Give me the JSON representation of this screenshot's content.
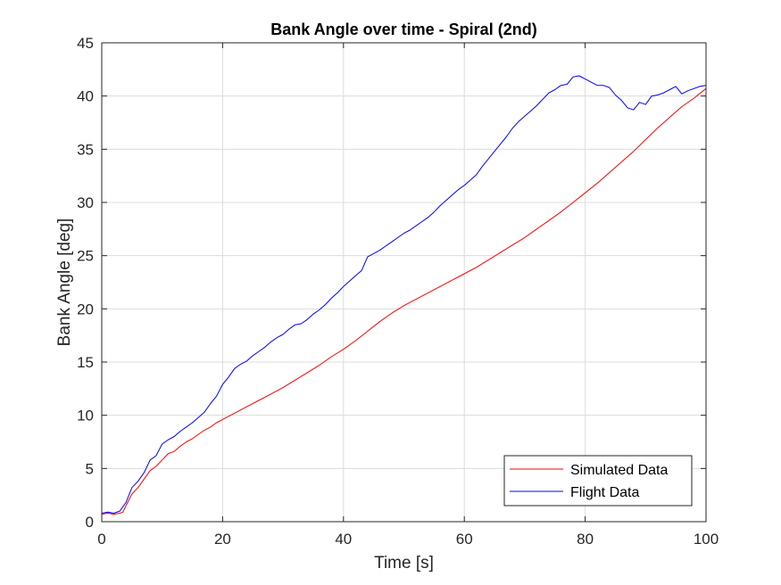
{
  "chart_data": {
    "type": "line",
    "title": "Bank Angle over time - Spiral (2nd)",
    "xlabel": "Time [s]",
    "ylabel": "Bank Angle [deg]",
    "xlim": [
      0,
      100
    ],
    "ylim": [
      0,
      45
    ],
    "xticks": [
      0,
      20,
      40,
      60,
      80,
      100
    ],
    "yticks": [
      0,
      5,
      10,
      15,
      20,
      25,
      30,
      35,
      40,
      45
    ],
    "grid": true,
    "legend_position": "bottom-right",
    "series": [
      {
        "name": "Simulated Data",
        "color": "#ff0000",
        "x": [
          0,
          1,
          2,
          3,
          3.5,
          4,
          5,
          6,
          7,
          8,
          9,
          10,
          11,
          12,
          13,
          14,
          15,
          16,
          17,
          18,
          19,
          20,
          22,
          24,
          26,
          28,
          30,
          32,
          34,
          36,
          38,
          40,
          42,
          44,
          46,
          48,
          50,
          52,
          54,
          56,
          58,
          60,
          62,
          64,
          66,
          68,
          70,
          72,
          74,
          76,
          78,
          80,
          82,
          84,
          86,
          88,
          90,
          92,
          94,
          96,
          98,
          100
        ],
        "y": [
          0.7,
          0.8,
          0.7,
          0.8,
          0.9,
          1.5,
          2.6,
          3.2,
          4.0,
          4.8,
          5.2,
          5.8,
          6.4,
          6.6,
          7.1,
          7.5,
          7.8,
          8.2,
          8.6,
          8.9,
          9.3,
          9.6,
          10.2,
          10.8,
          11.4,
          12.0,
          12.6,
          13.3,
          14.0,
          14.7,
          15.5,
          16.2,
          17.0,
          17.9,
          18.8,
          19.6,
          20.3,
          20.9,
          21.5,
          22.1,
          22.7,
          23.3,
          23.9,
          24.6,
          25.3,
          26.0,
          26.7,
          27.5,
          28.3,
          29.1,
          30.0,
          30.9,
          31.8,
          32.8,
          33.8,
          34.8,
          35.9,
          37.0,
          38.0,
          39.0,
          39.8,
          40.7
        ]
      },
      {
        "name": "Flight Data",
        "color": "#0000ff",
        "x": [
          0,
          1,
          2,
          3,
          4,
          5,
          6,
          7,
          8,
          9,
          10,
          11,
          12,
          13,
          14,
          15,
          16,
          17,
          18,
          19,
          20,
          21,
          22,
          23,
          24,
          25,
          26,
          27,
          28,
          29,
          30,
          31,
          32,
          33,
          34,
          35,
          36,
          37,
          38,
          39,
          40,
          41,
          42,
          43,
          44,
          45,
          46,
          47,
          48,
          49,
          50,
          51,
          52,
          53,
          54,
          55,
          56,
          57,
          58,
          59,
          60,
          61,
          62,
          63,
          64,
          65,
          66,
          67,
          68,
          69,
          70,
          71,
          72,
          73,
          74,
          75,
          76,
          77,
          78,
          79,
          80,
          81,
          82,
          83,
          84,
          85,
          86,
          87,
          88,
          89,
          90,
          91,
          92,
          93,
          94,
          95,
          96,
          97,
          98,
          99,
          100
        ],
        "y": [
          0.8,
          0.9,
          0.8,
          1.0,
          1.8,
          3.2,
          3.8,
          4.6,
          5.8,
          6.2,
          7.3,
          7.7,
          8.0,
          8.5,
          8.9,
          9.3,
          9.8,
          10.3,
          11.1,
          11.8,
          12.9,
          13.6,
          14.4,
          14.8,
          15.1,
          15.6,
          16.0,
          16.4,
          16.9,
          17.3,
          17.6,
          18.1,
          18.5,
          18.6,
          19.0,
          19.5,
          19.9,
          20.4,
          21.0,
          21.5,
          22.1,
          22.6,
          23.1,
          23.6,
          24.9,
          25.2,
          25.5,
          25.9,
          26.3,
          26.7,
          27.1,
          27.4,
          27.8,
          28.2,
          28.6,
          29.1,
          29.7,
          30.2,
          30.7,
          31.2,
          31.6,
          32.1,
          32.6,
          33.4,
          34.1,
          34.8,
          35.5,
          36.2,
          37.0,
          37.6,
          38.1,
          38.6,
          39.1,
          39.7,
          40.3,
          40.6,
          41.0,
          41.1,
          41.8,
          41.9,
          41.6,
          41.3,
          41.0,
          41.0,
          40.8,
          40.1,
          39.6,
          38.9,
          38.7,
          39.4,
          39.2,
          40.0,
          40.1,
          40.3,
          40.6,
          40.9,
          40.2,
          40.5,
          40.7,
          40.9,
          41.0
        ]
      }
    ]
  }
}
